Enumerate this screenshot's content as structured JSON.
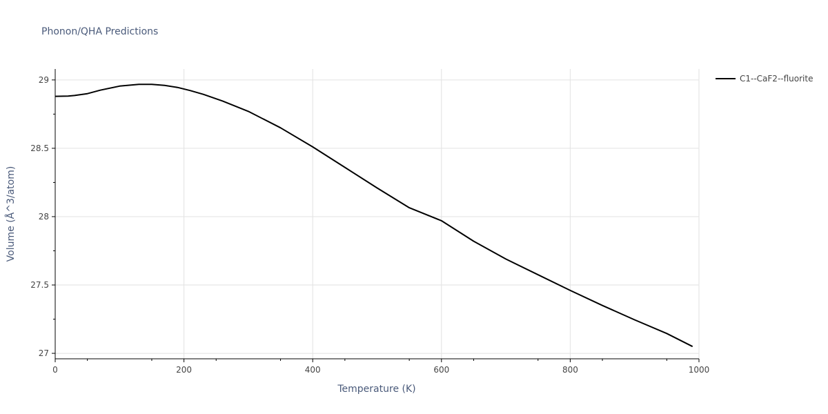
{
  "chart_data": {
    "type": "line",
    "title": "Phonon/QHA Predictions",
    "xlabel": "Temperature (K)",
    "ylabel": "Volume (Å^3/atom)",
    "xlim": [
      0,
      1000
    ],
    "ylim": [
      26.96,
      29.08
    ],
    "x_ticks": [
      0,
      200,
      400,
      600,
      800,
      1000
    ],
    "y_ticks": [
      27,
      27.5,
      28,
      28.5,
      29
    ],
    "x_tick_labels": [
      "0",
      "200",
      "400",
      "600",
      "800",
      "1000"
    ],
    "y_tick_labels": [
      "27",
      "27.5",
      "28",
      "28.5",
      "29"
    ],
    "grid": true,
    "legend_position": "top-right",
    "series": [
      {
        "name": "C1--CaF2--fluorite",
        "color": "#000000",
        "x": [
          0,
          20,
          30,
          50,
          70,
          100,
          130,
          150,
          170,
          190,
          210,
          230,
          260,
          300,
          350,
          400,
          450,
          500,
          550,
          600,
          650,
          700,
          750,
          800,
          850,
          900,
          950,
          990
        ],
        "y": [
          28.88,
          28.882,
          28.886,
          28.9,
          28.925,
          28.955,
          28.968,
          28.968,
          28.96,
          28.945,
          28.922,
          28.895,
          28.846,
          28.77,
          28.65,
          28.51,
          28.36,
          28.21,
          28.065,
          27.97,
          27.82,
          27.69,
          27.575,
          27.46,
          27.35,
          27.245,
          27.145,
          27.05
        ]
      }
    ]
  }
}
